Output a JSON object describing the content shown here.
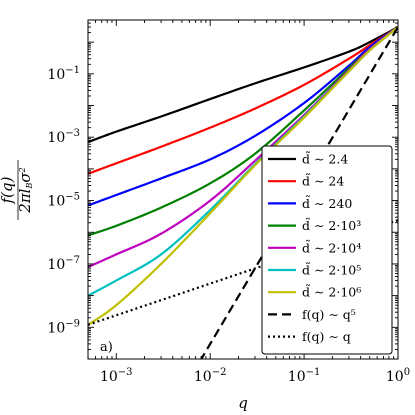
{
  "chart_data": {
    "type": "line",
    "panel_label": "a)",
    "xlabel": "q",
    "ylabel": "f(q) / 2π l_B σ²",
    "x_scale": "log",
    "y_scale": "log",
    "xlim": [
      0.0005,
      1.0
    ],
    "ylim": [
      1e-10,
      5.0
    ],
    "x_ticks": [
      {
        "value": 0.001,
        "label": "10−3"
      },
      {
        "value": 0.01,
        "label": "10−2"
      },
      {
        "value": 0.1,
        "label": "10−1"
      },
      {
        "value": 1.0,
        "label": "100"
      }
    ],
    "y_ticks": [
      {
        "value": 1e-09,
        "label": "10−9"
      },
      {
        "value": 1e-07,
        "label": "10−7"
      },
      {
        "value": 1e-05,
        "label": "10−5"
      },
      {
        "value": 0.001,
        "label": "10−3"
      },
      {
        "value": 0.1,
        "label": "10−1"
      }
    ],
    "legend_position": "lower-right",
    "series": [
      {
        "name": "d̃ ∼ 2.4",
        "color": "#000000",
        "dash": "solid",
        "x": [
          0.0005,
          0.001,
          0.003,
          0.01,
          0.03,
          0.1,
          0.3,
          0.5,
          1.0
        ],
        "y": [
          0.0007,
          0.0015,
          0.0045,
          0.016,
          0.05,
          0.16,
          0.5,
          1.0,
          3.0
        ]
      },
      {
        "name": "d̃ ∼ 24",
        "color": "#ff0000",
        "dash": "solid",
        "x": [
          0.0005,
          0.001,
          0.003,
          0.01,
          0.03,
          0.1,
          0.3,
          0.5,
          1.0
        ],
        "y": [
          7e-05,
          0.00015,
          0.0005,
          0.002,
          0.008,
          0.045,
          0.3,
          0.8,
          3.0
        ]
      },
      {
        "name": "d̃ ∼ 240",
        "color": "#0000ff",
        "dash": "solid",
        "x": [
          0.0005,
          0.001,
          0.003,
          0.01,
          0.03,
          0.1,
          0.3,
          0.5,
          1.0
        ],
        "y": [
          7e-06,
          1.5e-05,
          5e-05,
          0.0002,
          0.0011,
          0.012,
          0.18,
          0.7,
          3.0
        ]
      },
      {
        "name": "d̃ ∼ 2·10³",
        "color": "#008000",
        "dash": "solid",
        "x": [
          0.0005,
          0.001,
          0.003,
          0.01,
          0.03,
          0.1,
          0.3,
          0.5,
          1.0
        ],
        "y": [
          8e-07,
          1.6e-06,
          6e-06,
          3.5e-05,
          0.0003,
          0.007,
          0.15,
          0.6,
          3.0
        ]
      },
      {
        "name": "d̃ ∼ 2·10⁴",
        "color": "#bf00bf",
        "dash": "solid",
        "x": [
          0.0005,
          0.001,
          0.003,
          0.01,
          0.03,
          0.1,
          0.3,
          0.5,
          1.0
        ],
        "y": [
          8e-08,
          2e-07,
          9e-07,
          1e-05,
          0.00018,
          0.005,
          0.13,
          0.6,
          3.0
        ]
      },
      {
        "name": "d̃ ∼ 2·10⁵",
        "color": "#00bfbf",
        "dash": "solid",
        "x": [
          0.0005,
          0.001,
          0.003,
          0.01,
          0.03,
          0.1,
          0.3,
          0.5,
          1.0
        ],
        "y": [
          1e-08,
          3e-08,
          2e-07,
          5e-06,
          0.00014,
          0.0045,
          0.12,
          0.55,
          3.0
        ]
      },
      {
        "name": "d̃ ∼ 2·10⁶",
        "color": "#bfbf00",
        "dash": "solid",
        "x": [
          0.0005,
          0.001,
          0.003,
          0.01,
          0.03,
          0.1,
          0.3,
          0.5,
          1.0
        ],
        "y": [
          1.2e-09,
          5e-09,
          1e-07,
          4e-06,
          0.00013,
          0.0042,
          0.12,
          0.55,
          3.0
        ]
      },
      {
        "name": "f(q) ∼ q⁵",
        "color": "#000000",
        "dash": "dashed",
        "x": [
          0.0055,
          1.0
        ],
        "y": [
          1.5e-11,
          3.0
        ]
      },
      {
        "name": "f(q) ∼ q",
        "color": "#000000",
        "dash": "dotted",
        "x": [
          0.0005,
          1.0
        ],
        "y": [
          1.2e-09,
          2.4e-06
        ]
      }
    ]
  }
}
